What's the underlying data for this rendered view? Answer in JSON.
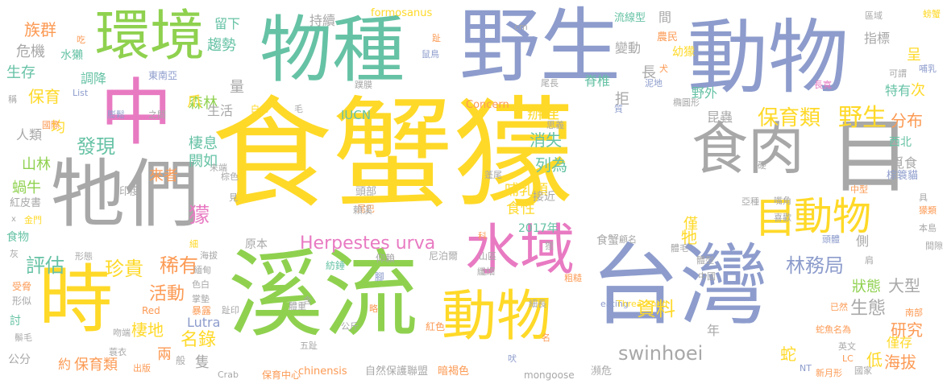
{
  "palette": {
    "green": "#8fd14f",
    "yellow": "#ffd928",
    "blue": "#8d9ccc",
    "teal": "#66c2a5",
    "gray": "#a8a8a8",
    "orange": "#fc9a54",
    "pink": "#e87ac2",
    "sand": "#e5c494",
    "background": "#ffffff"
  },
  "words": {
    "shi_xie_mao": "食蟹獴",
    "xi_liu": "溪流",
    "ye_sheng": "野生",
    "dong_wu_big": "動物",
    "wu_zhong": "物種",
    "ta_men": "牠們",
    "tai_wan": "台灣",
    "zhong": "中",
    "shi": "時",
    "huan_jing": "環境",
    "shi_rou": "食肉",
    "mu_big": "目",
    "shui_yu": "水域",
    "dong_wu_mid": "動物",
    "dong_wu_low": "動物",
    "mu_mid": "目",
    "herpestes": "Herpestes urva",
    "bao_yu_lei": "保育類",
    "ye_sheng_small": "野生",
    "fen_bu": "分布",
    "lin_wu_ju": "林務局",
    "zhen_gui": "珍貴",
    "xi_you": "稀有",
    "ping_gu": "評估",
    "huo_dong": "活動",
    "fa_xian": "發現",
    "mao": "獴",
    "ta": "牠",
    "zi_liao": "資料",
    "yan_jiu": "研究",
    "swinhoei": "swinhoei",
    "hai_ba": "海拔",
    "di": "低",
    "sheng_tai": "生態",
    "da_xing": "大型",
    "zhuang_tai": "狀態",
    "ming_lu": "名錄",
    "lutra": "Lutra",
    "qi_di": "棲地",
    "bao_yu_lei2": "保育類",
    "she": "蛇",
    "liang": "兩",
    "zhi": "隻",
    "lie_wei": "列為",
    "xiao_shi": "消失",
    "bu_ru_lei": "哺乳類",
    "shi_xing": "食性",
    "jie_jin": "接近",
    "bian_li": "辦理",
    "kun_chong": "昆蟲",
    "ye_wai": "野外",
    "ji_zhui": "脊椎",
    "chang": "長",
    "ju": "拒",
    "mi_shi": "覓食",
    "xi_bei": "西北",
    "zu_qun": "族群",
    "wei_ji": "危機",
    "sheng_cun": "生存",
    "bao_yu": "保育",
    "shui_ta": "水獺",
    "tiao_jiang": "調降",
    "sen_lin": "森林",
    "qu_shi": "趨勢",
    "liu_xia": "留下",
    "chi_xu": "持續",
    "formosanus": "formosanus",
    "dong_nan_ya": "東南亞",
    "liang2": "量",
    "sheng_huo": "生活",
    "zhao": "爪",
    "qi_xi": "棲息",
    "que_ru": "闕如",
    "lai_zhe": "來者",
    "shan_lin": "山林",
    "ren_lei": "人類",
    "jun": "均",
    "wo_niu": "蝸牛",
    "shi_wu": "食物",
    "gong_fen": "公分",
    "tao": "討",
    "yue": "約",
    "iucn": "IUCN",
    "concern": "Concern",
    "nian": "年",
    "ci": "次",
    "te_you": "特有",
    "zhi_biao": "指標",
    "cheng": "呈",
    "jian": "間",
    "bian_dong": "變動",
    "nong_min": "農民",
    "you_mao": "幼獴",
    "liu_xian_xing": "流線型",
    "qu_yu": "區域",
    "pang_xie": "螃蟹",
    "bu_ru": "哺乳",
    "chang_kuan": "長寬",
    "ke_wei": "可謂",
    "jin_cun": "僅存",
    "hai_ba2": "海拔",
    "year_2017": "2017年",
    "yuan_ben": "原本",
    "jin": "僅",
    "shi_xie": "食蟹",
    "ce": "側",
    "ti_mao": "體毛",
    "tou_ti": "頭體",
    "zhong_xing": "中型",
    "tou_bu": "頭部",
    "pang_wei": "蓬尾",
    "wei_ba": "尾巴",
    "zong_se": "棕色",
    "zong_suo_mao": "棕簑貓",
    "ben_dao": "本島",
    "yin_du": "印度",
    "hong_pi_shu": "紅皮書",
    "jin_men": "金門",
    "xing_tai": "形態",
    "shou_wei": "受脅",
    "xing_si": "形似",
    "chinensis": "chinensis",
    "zi_ran": "自然保護聯盟",
    "an_he_se": "暗褐色",
    "mongoose": "mongoose",
    "bin_wei": "瀕危",
    "guo_jia": "國家",
    "xin_yue_xing": "新月形",
    "nt": "NT",
    "crab": "Crab",
    "bao_yu_zhong_xin": "保育中心",
    "eating": "eating",
    "red": "Red",
    "threatened": "Threatened",
    "list": "List",
    "cm": "cm",
    "shu_niao": "鼠鳥",
    "qian": "吃",
    "pu_mo": "蹼膜",
    "wei_chang": "尾長",
    "bai_se": "白色",
    "mao2": "毛",
    "peng_song": "膨鬆",
    "zhi_jian": "之間",
    "guo_ji": "國際",
    "cheng2": "稱",
    "ni_ni": "泥地",
    "quan": "犬",
    "ju_xing": "橢圓形",
    "zhi2": "質",
    "si_yi": "思義",
    "ying": "硬",
    "jie_qian": "嘴角",
    "ya_zhong": "亞種",
    "xi_huan": "喜歡",
    "mao_lei": "獴類",
    "ju2": "具",
    "jian_sou": "間隙",
    "ti_xing": "體型",
    "zhong_guo": "中國",
    "gu_ming": "顧名",
    "jian2": "肩",
    "nan_bu": "南部",
    "yi_ran": "已然",
    "she_yu": "蛇魚名為",
    "ying_wen": "英文",
    "lc": "LC",
    "cu_cao": "粗糙",
    "xi_chang": "細長",
    "xian_wei": "纖細",
    "yang_lai": "仰賴",
    "ni_bo_er": "尼泊爾",
    "shan_qu": "山區",
    "li": "狸",
    "ke": "科",
    "jiao": "腳",
    "fang_chui": "紡錘",
    "hong_se": "紅色",
    "ti_zhong": "體重",
    "gong_jin": "公斤",
    "wu_zhi": "五趾",
    "lan_xi": "賴溪",
    "jian3": "見",
    "wei_ba2": "尾巴",
    "mo_duan": "末端",
    "se_bai": "色白",
    "zhang_dian": "掌墊",
    "bao_lu": "暴露",
    "zhi_yin": "趾印",
    "pan_duan": "攀斷",
    "xu_yi": "蓑衣",
    "wen_duan": "吻端",
    "chu_ban": "出版",
    "xi_mao": "鬃毛",
    "hai_ba3": "海拔",
    "mian_dian": "緬甸",
    "x": "x",
    "hui": "灰",
    "xi": "細",
    "ban": "般",
    "lue": "略",
    "han": "含",
    "zhi3": "趾",
    "ming": "名",
    "fei": "吠"
  }
}
